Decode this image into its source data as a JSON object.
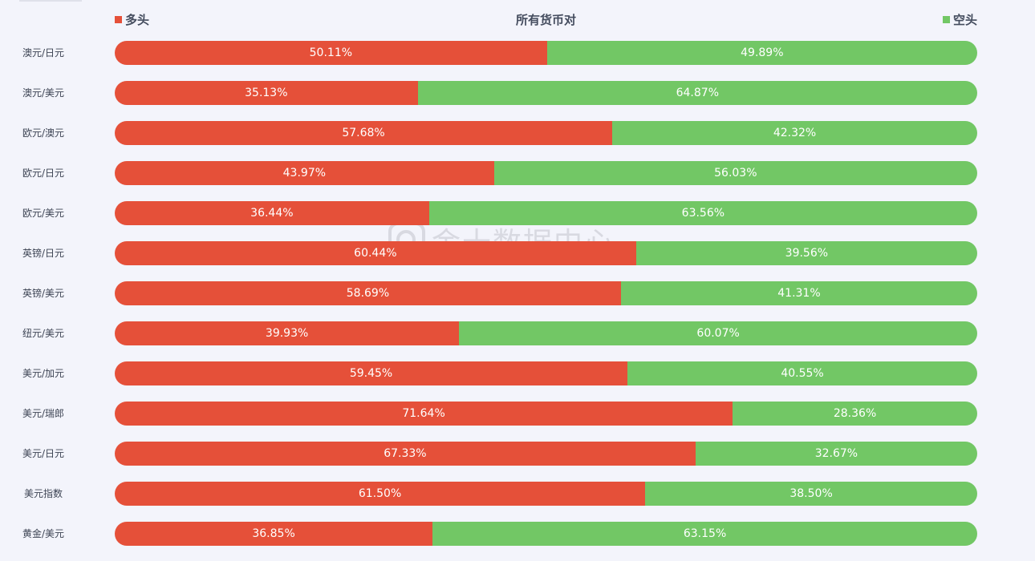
{
  "chart_data": {
    "type": "bar",
    "title": "所有货币对",
    "orientation": "horizontal-stacked-100",
    "categories": [
      "澳元/日元",
      "澳元/美元",
      "欧元/澳元",
      "欧元/日元",
      "欧元/美元",
      "英镑/日元",
      "英镑/美元",
      "纽元/美元",
      "美元/加元",
      "美元/瑞郎",
      "美元/日元",
      "美元指数",
      "黄金/美元"
    ],
    "series": [
      {
        "name": "多头",
        "color": "#e55039",
        "values": [
          50.11,
          35.13,
          57.68,
          43.97,
          36.44,
          60.44,
          58.69,
          39.93,
          59.45,
          71.64,
          67.33,
          61.5,
          36.85
        ]
      },
      {
        "name": "空头",
        "color": "#72c765",
        "values": [
          49.89,
          64.87,
          42.32,
          56.03,
          63.56,
          39.56,
          41.31,
          60.07,
          40.55,
          28.36,
          32.67,
          38.5,
          63.15
        ]
      }
    ],
    "labels": {
      "long": [
        "50.11%",
        "35.13%",
        "57.68%",
        "43.97%",
        "36.44%",
        "60.44%",
        "58.69%",
        "39.93%",
        "59.45%",
        "71.64%",
        "67.33%",
        "61.50%",
        "36.85%"
      ],
      "short": [
        "49.89%",
        "64.87%",
        "42.32%",
        "56.03%",
        "63.56%",
        "39.56%",
        "41.31%",
        "60.07%",
        "40.55%",
        "28.36%",
        "32.67%",
        "38.50%",
        "63.15%"
      ]
    },
    "xlim": [
      0,
      100
    ],
    "legend": "top-left and top-right"
  },
  "watermark": {
    "text": "金十数据中心",
    "icon": "jin10-logo-icon"
  }
}
